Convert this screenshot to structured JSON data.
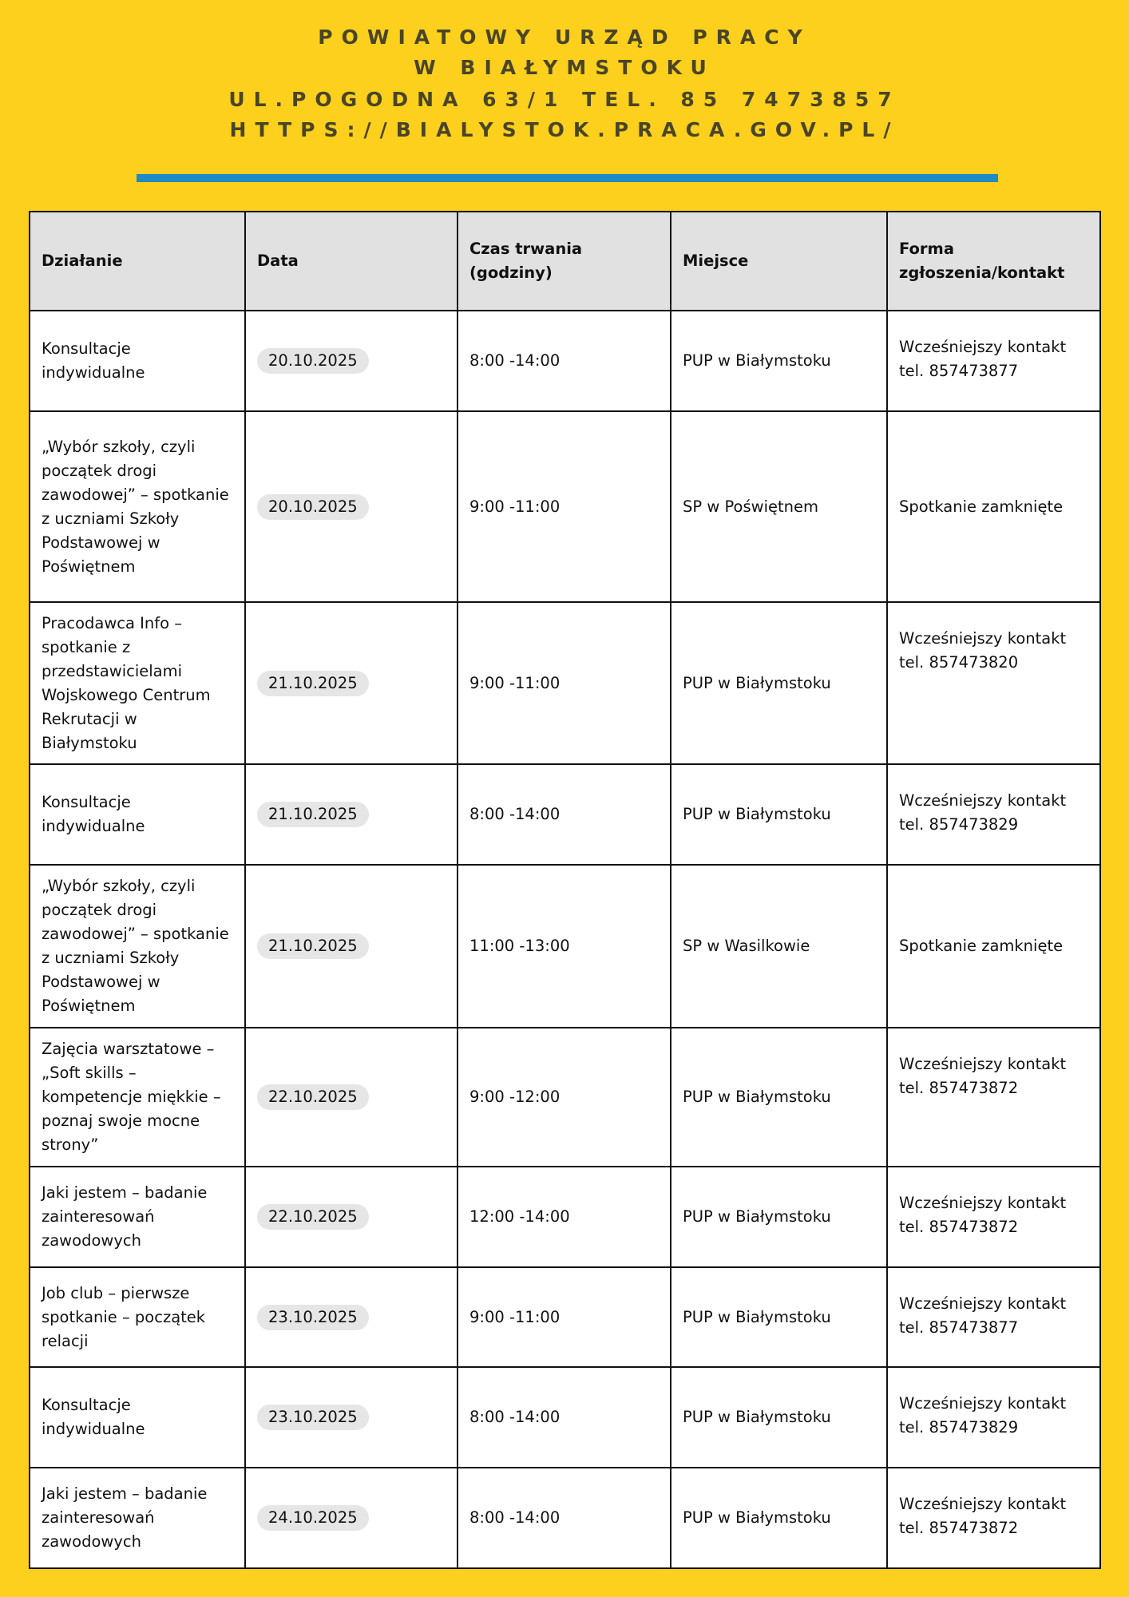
{
  "header": {
    "lines": [
      "POWIATOWY URZĄD PRACY",
      "W BIAŁYMSTOKU",
      "UL.POGODNA 63/1 TEL. 85 7473857",
      "HTTPS://BIALYSTOK.PRACA.GOV.PL/"
    ],
    "accent_color": "#1f8ac4",
    "background_color": "#fcd01c"
  },
  "table": {
    "columns": [
      "Działanie",
      "Data",
      "Czas trwania (godziny)",
      "Miejsce",
      "Forma zgłoszenia/kontakt"
    ],
    "rows": [
      {
        "action": "Konsultacje indywidualne",
        "date": "20.10.2025",
        "time": "8:00 -14:00",
        "place": "PUP w Białymstoku",
        "contact": "Wcześniejszy kontakt tel. 857473877"
      },
      {
        "action": "„Wybór szkoły, czyli początek drogi zawodowej” – spotkanie z uczniami Szkoły Podstawowej w Poświętnem",
        "date": "20.10.2025",
        "time": "9:00 -11:00",
        "place": "SP w Poświętnem",
        "contact": "Spotkanie zamknięte"
      },
      {
        "action": "Pracodawca Info – spotkanie z przedstawicielami Wojskowego Centrum Rekrutacji w Białymstoku",
        "date": "21.10.2025",
        "time": "9:00 -11:00",
        "place": "PUP w Białymstoku",
        "contact": "Wcześniejszy kontakt tel. 857473820"
      },
      {
        "action": "Konsultacje indywidualne",
        "date": "21.10.2025",
        "time": "8:00 -14:00",
        "place": "PUP w Białymstoku",
        "contact": "Wcześniejszy kontakt tel. 857473829"
      },
      {
        "action": "„Wybór szkoły, czyli początek drogi zawodowej” – spotkanie z uczniami Szkoły Podstawowej w Poświętnem",
        "date": "21.10.2025",
        "time": "11:00 -13:00",
        "place": "SP w Wasilkowie",
        "contact": "Spotkanie zamknięte"
      },
      {
        "action": "Zajęcia warsztatowe – „Soft skills – kompetencje miękkie – poznaj swoje mocne strony”",
        "date": "22.10.2025",
        "time": "9:00 -12:00",
        "place": "PUP w Białymstoku",
        "contact": "Wcześniejszy kontakt tel. 857473872"
      },
      {
        "action": "Jaki jestem – badanie zainteresowań zawodowych",
        "date": "22.10.2025",
        "time": "12:00 -14:00",
        "place": "PUP w Białymstoku",
        "contact": "Wcześniejszy kontakt tel. 857473872"
      },
      {
        "action": "Job club – pierwsze spotkanie – początek relacji",
        "date": "23.10.2025",
        "time": "9:00 -11:00",
        "place": "PUP w Białymstoku",
        "contact": "Wcześniejszy kontakt tel. 857473877"
      },
      {
        "action": "Konsultacje indywidualne",
        "date": "23.10.2025",
        "time": "8:00 -14:00",
        "place": "PUP w Białymstoku",
        "contact": "Wcześniejszy kontakt tel. 857473829"
      },
      {
        "action": "Jaki jestem – badanie zainteresowań zawodowych",
        "date": "24.10.2025",
        "time": "8:00 -14:00",
        "place": "PUP w Białymstoku",
        "contact": "Wcześniejszy kontakt tel. 857473872"
      }
    ]
  }
}
